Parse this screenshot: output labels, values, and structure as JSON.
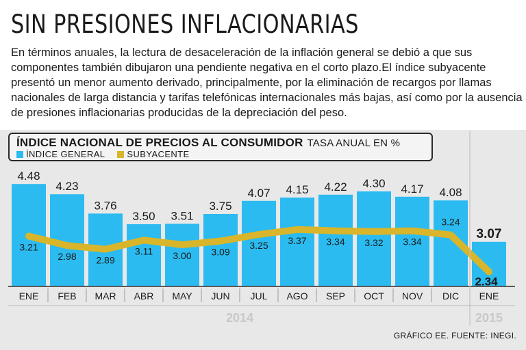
{
  "title": "SIN PRESIONES INFLACIONARIAS",
  "intro": "En términos anuales, la lectura de desaceleración de la inflación general se debió a que sus componentes también dibujaron una pendiente negativa en el corto plazo.El índice subyacente presentó un menor aumento derivado, principalmente, por la eliminación de recargos por llamas nacionales de larga distancia y tarifas telefónicas internacionales más bajas, así como por la ausencia de presiones inflacionarias producidas de la depreciación del peso.",
  "source": "GRÁFICO EE. FUENTE: INEGI.",
  "colors": {
    "bar": "#2bbbf0",
    "line": "#d8b52a",
    "panel": "#e8e8e8",
    "year_label": "#c8c8c8"
  },
  "chart_data": {
    "type": "bar",
    "title": "ÍNDICE NACIONAL DE PRECIOS AL CONSUMIDOR",
    "subtitle": "TASA ANUAL EN %",
    "categories": [
      "ENE",
      "FEB",
      "MAR",
      "ABR",
      "MAY",
      "JUN",
      "JUL",
      "AGO",
      "SEP",
      "OCT",
      "NOV",
      "DIC",
      "ENE"
    ],
    "year_groups": [
      {
        "label": "2014",
        "count": 12
      },
      {
        "label": "2015",
        "count": 1
      }
    ],
    "series": [
      {
        "name": "ÍNDICE GENERAL",
        "type": "bar",
        "values": [
          4.48,
          4.23,
          3.76,
          3.5,
          3.51,
          3.75,
          4.07,
          4.15,
          4.22,
          4.3,
          4.17,
          4.08,
          3.07
        ],
        "labels": [
          "4.48",
          "4.23",
          "3.76",
          "3.50",
          "3.51",
          "3.75",
          "4.07",
          "4.15",
          "4.22",
          "4.30",
          "4.17",
          "4.08",
          "3.07"
        ]
      },
      {
        "name": "SUBYACENTE",
        "type": "line",
        "values": [
          3.21,
          2.98,
          2.89,
          3.11,
          3.0,
          3.09,
          3.25,
          3.37,
          3.34,
          3.32,
          3.34,
          3.24,
          2.34
        ],
        "labels": [
          "3.21",
          "2.98",
          "2.89",
          "3.11",
          "3.00",
          "3.09",
          "3.25",
          "3.37",
          "3.34",
          "3.32",
          "3.34",
          "3.24",
          "2.34"
        ]
      }
    ],
    "ylim": [
      2.0,
      4.6
    ],
    "grid": false,
    "legend": "top-left"
  }
}
